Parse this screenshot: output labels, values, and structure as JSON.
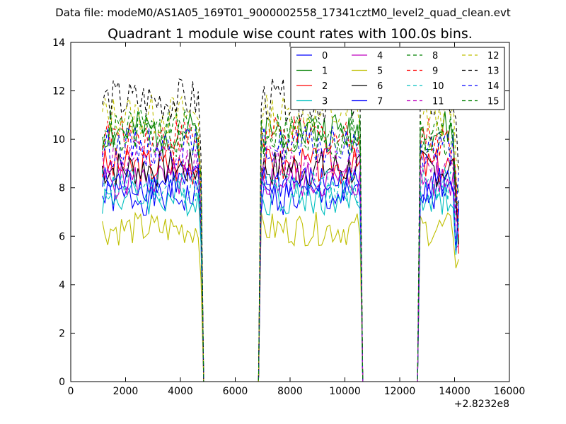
{
  "figure": {
    "suptitle": "Data file: modeM0/AS1A05_169T01_9000002558_17341cztM0_level2_quad_clean.evt"
  },
  "chart_data": {
    "type": "line",
    "title": "Quadrant 1 module wise count rates with 100.0s bins.",
    "xlabel": "",
    "ylabel": "",
    "xlim": [
      0,
      16000
    ],
    "ylim": [
      0,
      14
    ],
    "x_offset_label": "+2.8232e8",
    "xticks": [
      0,
      2000,
      4000,
      6000,
      8000,
      10000,
      12000,
      14000,
      16000
    ],
    "yticks": [
      0,
      2,
      4,
      6,
      8,
      10,
      12,
      14
    ],
    "grid": false,
    "legend_position": "top-right",
    "legend_columns": 4,
    "x_start": 1150,
    "x_step": 100,
    "series": [
      {
        "name": "0",
        "color": "#0000ff",
        "dash": "solid",
        "base": 7.6,
        "seed": 1
      },
      {
        "name": "1",
        "color": "#008000",
        "dash": "solid",
        "base": 10.3,
        "seed": 2
      },
      {
        "name": "2",
        "color": "#ff0000",
        "dash": "solid",
        "base": 8.9,
        "seed": 3
      },
      {
        "name": "3",
        "color": "#00bfbf",
        "dash": "solid",
        "base": 7.6,
        "seed": 4
      },
      {
        "name": "4",
        "color": "#bf00bf",
        "dash": "solid",
        "base": 8.3,
        "seed": 5
      },
      {
        "name": "5",
        "color": "#bfbf00",
        "dash": "solid",
        "base": 6.3,
        "seed": 6
      },
      {
        "name": "6",
        "color": "#000000",
        "dash": "solid",
        "base": 8.8,
        "seed": 7
      },
      {
        "name": "7",
        "color": "#0000ff",
        "dash": "solid",
        "base": 8.2,
        "seed": 8
      },
      {
        "name": "8",
        "color": "#008000",
        "dash": "dashed",
        "base": 10.0,
        "seed": 9
      },
      {
        "name": "9",
        "color": "#ff0000",
        "dash": "dashed",
        "base": 10.1,
        "seed": 10
      },
      {
        "name": "10",
        "color": "#00bfbf",
        "dash": "dashed",
        "base": 8.1,
        "seed": 11
      },
      {
        "name": "11",
        "color": "#bf00bf",
        "dash": "dashed",
        "base": 9.1,
        "seed": 12
      },
      {
        "name": "12",
        "color": "#bfbf00",
        "dash": "dashed",
        "base": 11.0,
        "seed": 13
      },
      {
        "name": "13",
        "color": "#000000",
        "dash": "dashed",
        "base": 11.6,
        "seed": 14
      },
      {
        "name": "14",
        "color": "#0000ff",
        "dash": "dashed",
        "base": 9.7,
        "seed": 15
      },
      {
        "name": "15",
        "color": "#008000",
        "dash": "dashed",
        "base": 10.4,
        "seed": 16
      }
    ],
    "segments": [
      {
        "from": 1150,
        "to": 4650,
        "level": 1.0
      },
      {
        "from": 4750,
        "to": 4750,
        "level": 0.78
      },
      {
        "from": 4850,
        "to": 6850,
        "level": 0.0
      },
      {
        "from": 6950,
        "to": 10550,
        "level": 1.0
      },
      {
        "from": 10650,
        "to": 12650,
        "level": 0.0
      },
      {
        "from": 12750,
        "to": 14150,
        "level": 1.0
      }
    ]
  }
}
